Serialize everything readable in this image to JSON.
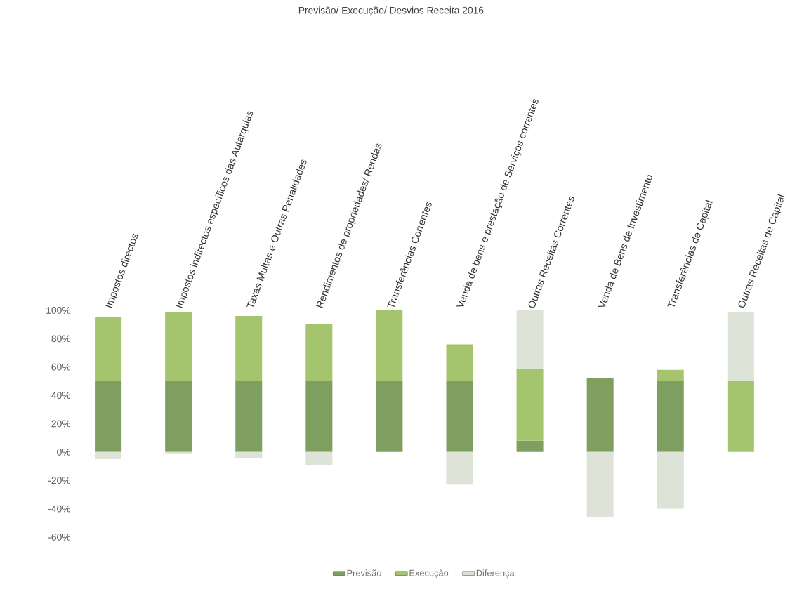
{
  "chart_data": {
    "type": "bar",
    "stacked": true,
    "title": "Previsão/ Execução/ Desvios Receita 2016",
    "categories": [
      "Impostos directos",
      "Impostos indirectos específicos das Autarquias",
      "Taxas Multas e Outras Penalidades",
      "Rendimentos de propriedades/ Rendas",
      "Transferências Correntes",
      "Venda de bens e prestação de Serviços correntes",
      "Outras Receitas Correntes",
      "Venda de Bens de Investimento",
      "Transferências de Capital",
      "Outras Receitas de Capital"
    ],
    "series": [
      {
        "name": "Previsão",
        "color": "#7f9f60",
        "values": [
          50,
          50,
          50,
          50,
          50,
          50,
          8,
          52,
          50,
          0
        ]
      },
      {
        "name": "Execução",
        "color": "#a5c46e",
        "values": [
          45,
          49,
          46,
          40,
          50,
          26,
          51,
          0,
          8,
          50
        ]
      },
      {
        "name": "Diferença",
        "color": "#dde3d6",
        "values": [
          -5,
          -1,
          -4,
          -9,
          0,
          -23,
          41,
          -46,
          -40,
          49
        ]
      }
    ],
    "ylim": [
      -60,
      100
    ],
    "yticks": [
      {
        "value": -60,
        "label": "-60%"
      },
      {
        "value": -40,
        "label": "-40%"
      },
      {
        "value": -20,
        "label": "-20%"
      },
      {
        "value": 0,
        "label": "0%"
      },
      {
        "value": 20,
        "label": "20%"
      },
      {
        "value": 40,
        "label": "40%"
      },
      {
        "value": 60,
        "label": "60%"
      },
      {
        "value": 80,
        "label": "80%"
      },
      {
        "value": 100,
        "label": "100%"
      }
    ],
    "legend": "bottom",
    "grid": false
  }
}
